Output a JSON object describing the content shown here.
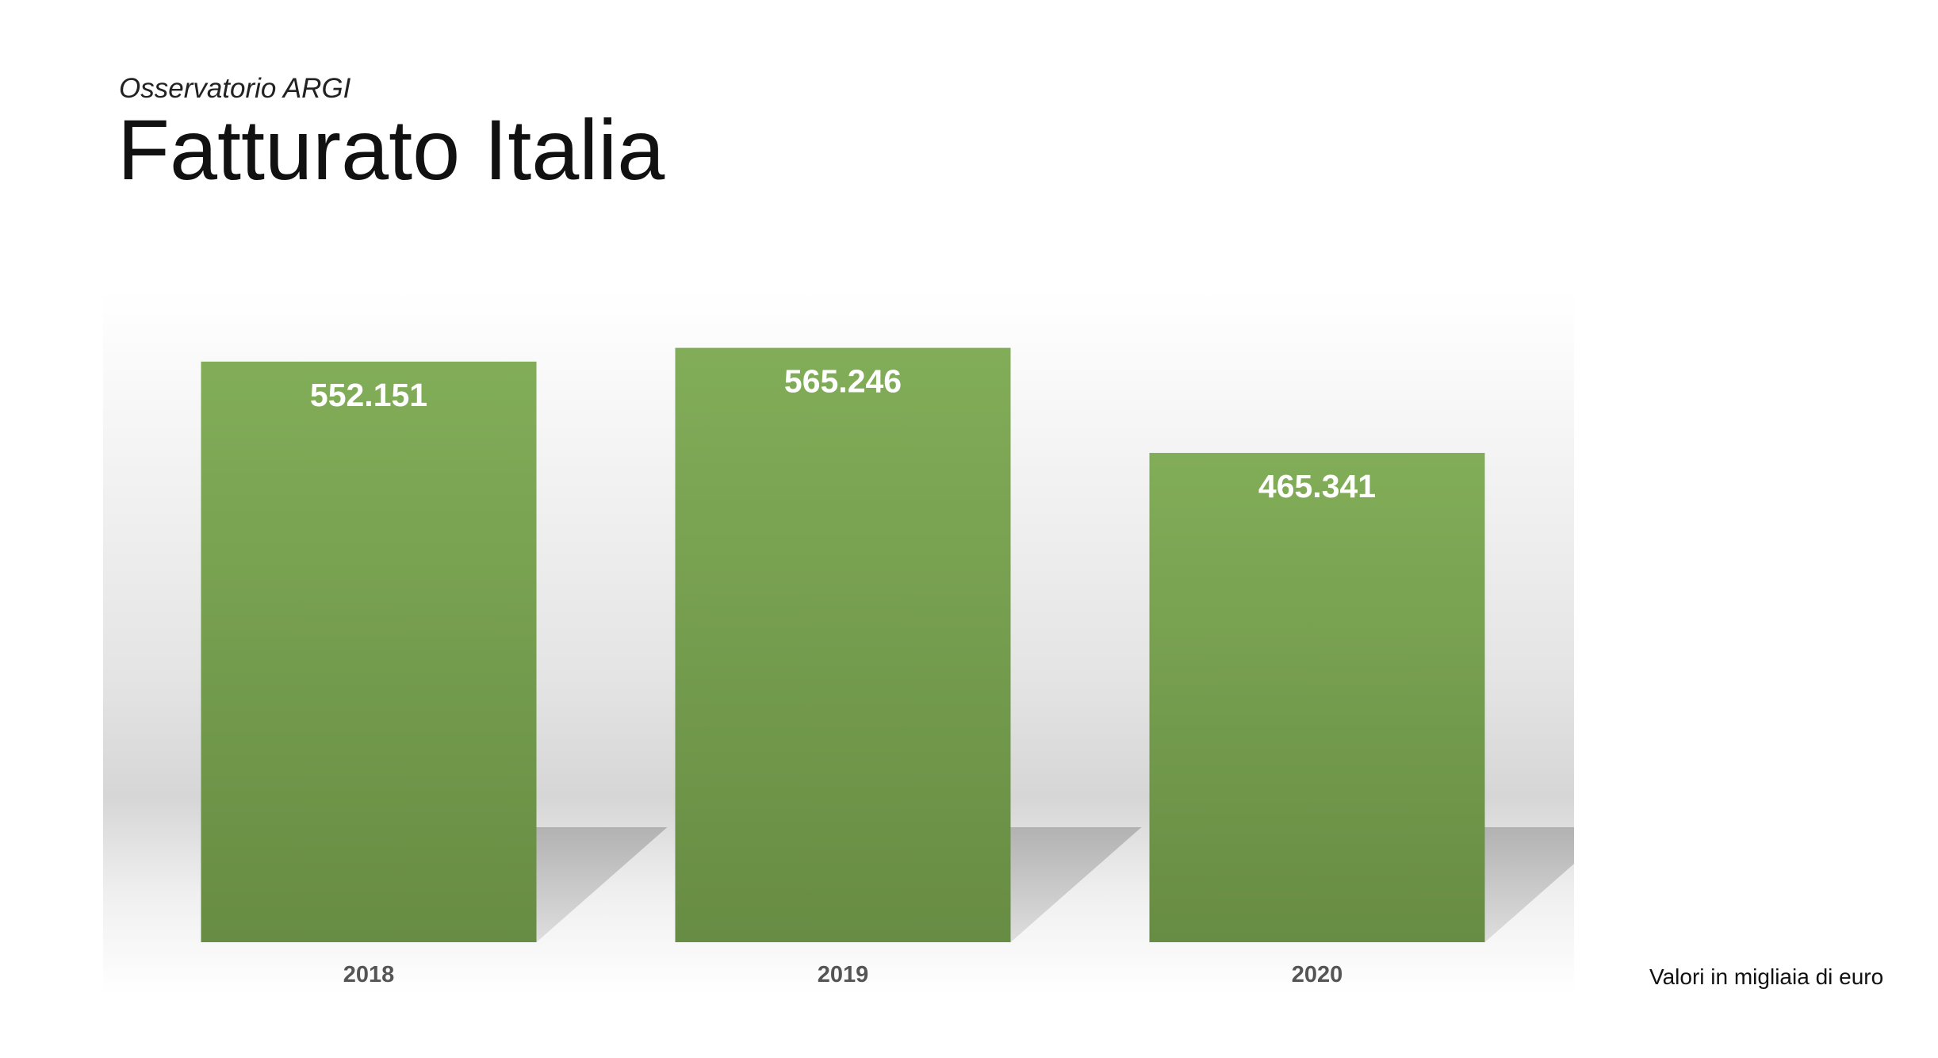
{
  "header": {
    "subtitle": "Osservatorio ARGI",
    "title": "Fatturato Italia"
  },
  "footer": {
    "note": "Valori in migliaia di euro"
  },
  "colors": {
    "bar_top": "#82ad58",
    "bar_bottom": "#678c43",
    "label": "#ffffff",
    "tick": "#555555"
  },
  "chart_data": {
    "type": "bar",
    "title": "Fatturato Italia",
    "categories": [
      "2018",
      "2019",
      "2020"
    ],
    "values": [
      552151,
      565246,
      465341
    ],
    "value_labels": [
      "552.151",
      "565.246",
      "465.341"
    ],
    "xlabel": "",
    "ylabel": "",
    "ylim": [
      0,
      620000
    ],
    "grid": false,
    "legend": "none"
  }
}
